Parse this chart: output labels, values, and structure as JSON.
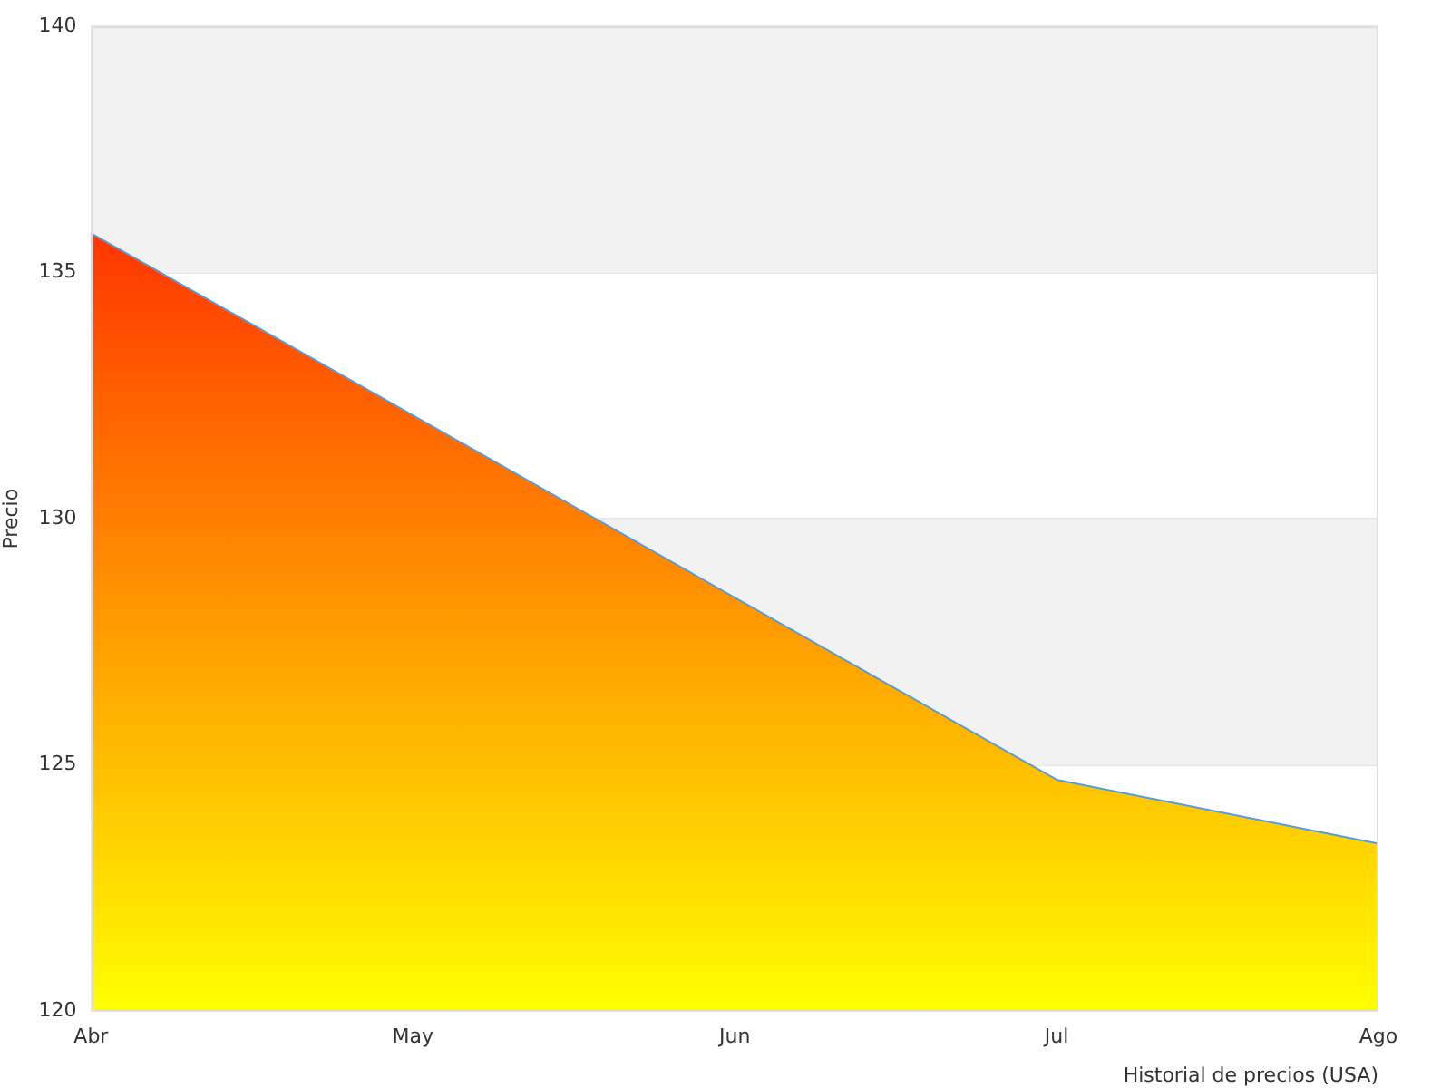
{
  "chart_data": {
    "type": "area",
    "xlabel": "Historial de precios (USA)",
    "ylabel": "Precio",
    "categories": [
      "Abr",
      "May",
      "Jun",
      "Jul",
      "Ago"
    ],
    "series": [
      {
        "color": "#5b9bd5",
        "values": [
          135.8,
          132.1,
          128.4,
          124.7,
          123.4
        ]
      }
    ],
    "ylim": [
      120,
      140
    ],
    "yticks": [
      120,
      125,
      130,
      135,
      140
    ],
    "grid": "y",
    "legend": false,
    "bands": [
      {
        "axis": "y",
        "from": 135,
        "to": 140,
        "color": "#f2f2f2"
      },
      {
        "axis": "y",
        "from": 125,
        "to": 130,
        "color": "#f2f2f2"
      }
    ]
  }
}
